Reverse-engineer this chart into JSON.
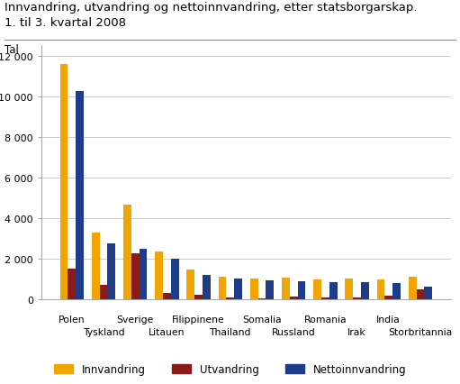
{
  "title_line1": "Innvandring, utvandring og nettoinnvandring, etter statsborgarskap.",
  "title_line2": "1. til 3. kvartal 2008",
  "ylabel": "Tal",
  "countries": [
    "Polen",
    "Tyskland",
    "Sverige",
    "Litauen",
    "Filippinene",
    "Thailand",
    "Somalia",
    "Russland",
    "Romania",
    "Irak",
    "India",
    "Storbritannia"
  ],
  "innvandring": [
    11600,
    3300,
    4650,
    2350,
    1450,
    1100,
    1020,
    1050,
    980,
    1020,
    1000,
    1100
  ],
  "utvandring": [
    1500,
    700,
    2250,
    300,
    220,
    80,
    50,
    150,
    80,
    80,
    180,
    470
  ],
  "nettoinnvandring": [
    10250,
    2750,
    2480,
    2020,
    1200,
    1020,
    950,
    870,
    850,
    840,
    780,
    620
  ],
  "color_innvandring": "#f0a500",
  "color_utvandring": "#8b1a1a",
  "color_netto": "#1f3c88",
  "ylim": [
    0,
    12500
  ],
  "yticks": [
    0,
    2000,
    4000,
    6000,
    8000,
    10000,
    12000
  ],
  "background_color": "#ffffff",
  "grid_color": "#cccccc",
  "bar_width": 0.25
}
